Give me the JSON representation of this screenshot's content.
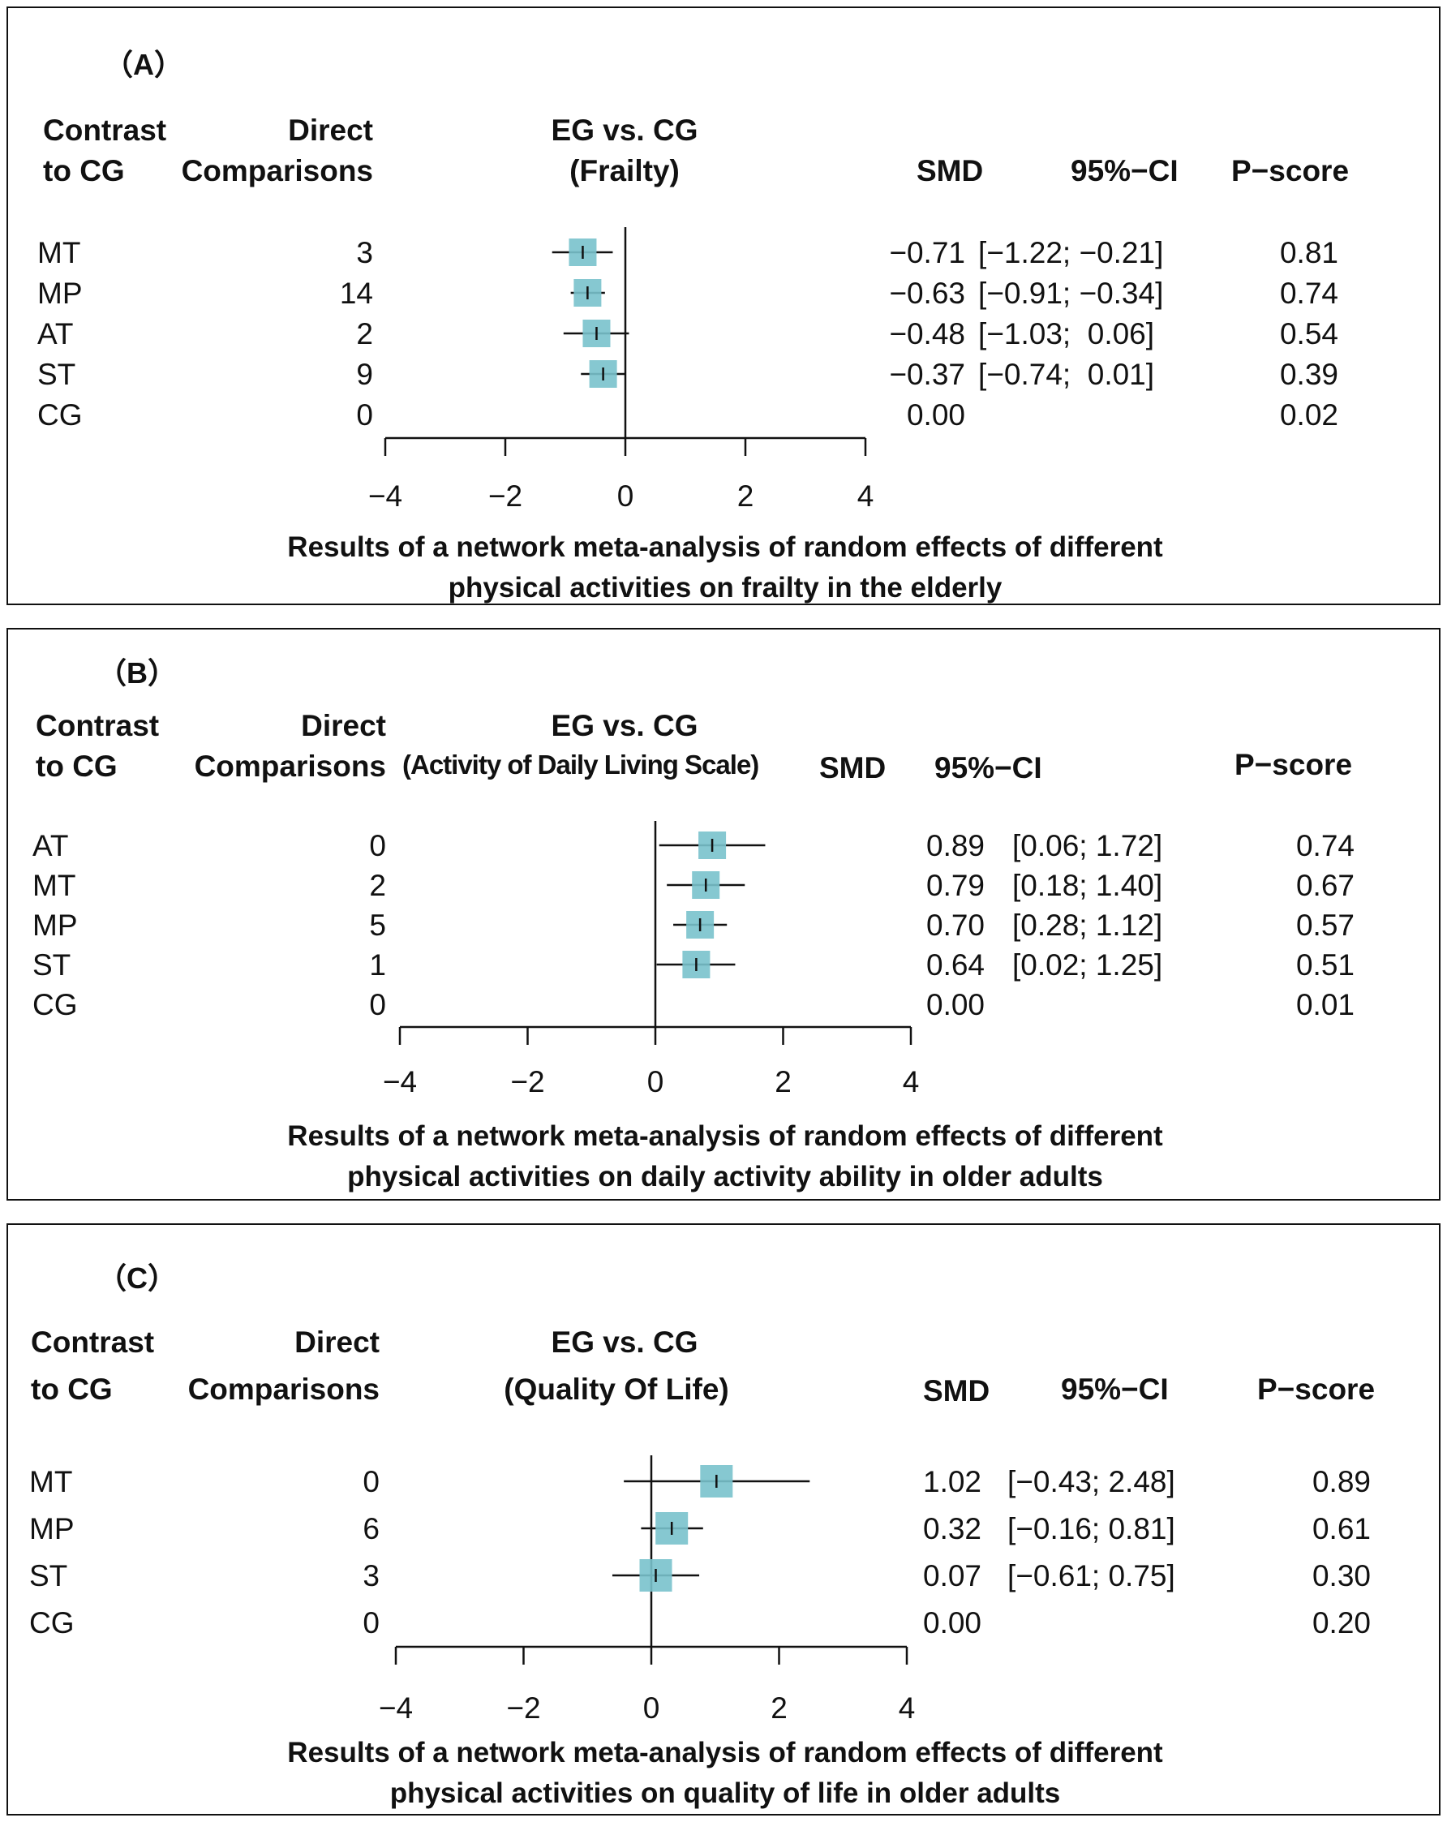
{
  "colors": {
    "box": "#79c2cc",
    "line": "#111111"
  },
  "chart_data": [
    {
      "type": "forest",
      "panel_label": "（A）",
      "headers": {
        "contrast": [
          "Contrast",
          "to CG"
        ],
        "direct": [
          "Direct",
          "Comparisons"
        ],
        "plot_title": [
          "EG vs. CG",
          "(Frailty)"
        ],
        "smd": "SMD",
        "ci": "95%−CI",
        "pscore": "P−score"
      },
      "xlim": [
        -4,
        4
      ],
      "ticks": [
        -4,
        -2,
        0,
        2,
        4
      ],
      "tick_labels": [
        "−4",
        "−2",
        "0",
        "2",
        "4"
      ],
      "rows": [
        {
          "name": "MT",
          "direct": "3",
          "smd": -0.71,
          "lower": -1.22,
          "upper": -0.21,
          "smd_text": "−0.71",
          "ci_text": "[−1.22; −0.21]",
          "pscore": "0.81"
        },
        {
          "name": "MP",
          "direct": "14",
          "smd": -0.63,
          "lower": -0.91,
          "upper": -0.34,
          "smd_text": "−0.63",
          "ci_text": "[−0.91; −0.34]",
          "pscore": "0.74"
        },
        {
          "name": "AT",
          "direct": "2",
          "smd": -0.48,
          "lower": -1.03,
          "upper": 0.06,
          "smd_text": "−0.48",
          "ci_text": "[−1.03;  0.06]",
          "pscore": "0.54"
        },
        {
          "name": "ST",
          "direct": "9",
          "smd": -0.37,
          "lower": -0.74,
          "upper": 0.01,
          "smd_text": "−0.37",
          "ci_text": "[−0.74;  0.01]",
          "pscore": "0.39"
        },
        {
          "name": "CG",
          "direct": "0",
          "smd": 0.0,
          "lower": null,
          "upper": null,
          "smd_text": "0.00",
          "ci_text": "",
          "pscore": "0.02"
        }
      ],
      "caption": [
        "Results of a network meta-analysis of random effects of different",
        "physical activities on frailty in the elderly"
      ]
    },
    {
      "type": "forest",
      "panel_label": "（B）",
      "headers": {
        "contrast": [
          "Contrast",
          "to CG"
        ],
        "direct": [
          "Direct",
          "Comparisons"
        ],
        "plot_title": [
          "EG vs. CG",
          "(Activity of Daily Living Scale)"
        ],
        "smd": "SMD",
        "ci": "95%−CI",
        "pscore": "P−score"
      },
      "xlim": [
        -4,
        4
      ],
      "ticks": [
        -4,
        -2,
        0,
        2,
        4
      ],
      "tick_labels": [
        "−4",
        "−2",
        "0",
        "2",
        "4"
      ],
      "rows": [
        {
          "name": "AT",
          "direct": "0",
          "smd": 0.89,
          "lower": 0.06,
          "upper": 1.72,
          "smd_text": "0.89",
          "ci_text": "[0.06; 1.72]",
          "pscore": "0.74"
        },
        {
          "name": "MT",
          "direct": "2",
          "smd": 0.79,
          "lower": 0.18,
          "upper": 1.4,
          "smd_text": "0.79",
          "ci_text": "[0.18; 1.40]",
          "pscore": "0.67"
        },
        {
          "name": "MP",
          "direct": "5",
          "smd": 0.7,
          "lower": 0.28,
          "upper": 1.12,
          "smd_text": "0.70",
          "ci_text": "[0.28; 1.12]",
          "pscore": "0.57"
        },
        {
          "name": "ST",
          "direct": "1",
          "smd": 0.64,
          "lower": 0.02,
          "upper": 1.25,
          "smd_text": "0.64",
          "ci_text": "[0.02; 1.25]",
          "pscore": "0.51"
        },
        {
          "name": "CG",
          "direct": "0",
          "smd": 0.0,
          "lower": null,
          "upper": null,
          "smd_text": "0.00",
          "ci_text": "",
          "pscore": "0.01"
        }
      ],
      "caption": [
        "Results of  a network meta-analysis of random effects of different",
        "physical activities on daily activity ability in older adults"
      ]
    },
    {
      "type": "forest",
      "panel_label": "（C）",
      "headers": {
        "contrast": [
          "Contrast",
          "to CG"
        ],
        "direct": [
          "Direct",
          "Comparisons"
        ],
        "plot_title": [
          "EG vs. CG",
          "(Quality Of Life)"
        ],
        "smd": "SMD",
        "ci": "95%−CI",
        "pscore": "P−score"
      },
      "xlim": [
        -4,
        4
      ],
      "ticks": [
        -4,
        -2,
        0,
        2,
        4
      ],
      "tick_labels": [
        "−4",
        "−2",
        "0",
        "2",
        "4"
      ],
      "rows": [
        {
          "name": "MT",
          "direct": "0",
          "smd": 1.02,
          "lower": -0.43,
          "upper": 2.48,
          "smd_text": "1.02",
          "ci_text": "[−0.43; 2.48]",
          "pscore": "0.89"
        },
        {
          "name": "MP",
          "direct": "6",
          "smd": 0.32,
          "lower": -0.16,
          "upper": 0.81,
          "smd_text": "0.32",
          "ci_text": "[−0.16; 0.81]",
          "pscore": "0.61"
        },
        {
          "name": "ST",
          "direct": "3",
          "smd": 0.07,
          "lower": -0.61,
          "upper": 0.75,
          "smd_text": "0.07",
          "ci_text": "[−0.61; 0.75]",
          "pscore": "0.30"
        },
        {
          "name": "CG",
          "direct": "0",
          "smd": 0.0,
          "lower": null,
          "upper": null,
          "smd_text": "0.00",
          "ci_text": "",
          "pscore": "0.20"
        }
      ],
      "caption": [
        "Results of a network meta-analysis of random effects of different",
        "physical activities on quality of life in older adults"
      ]
    }
  ]
}
